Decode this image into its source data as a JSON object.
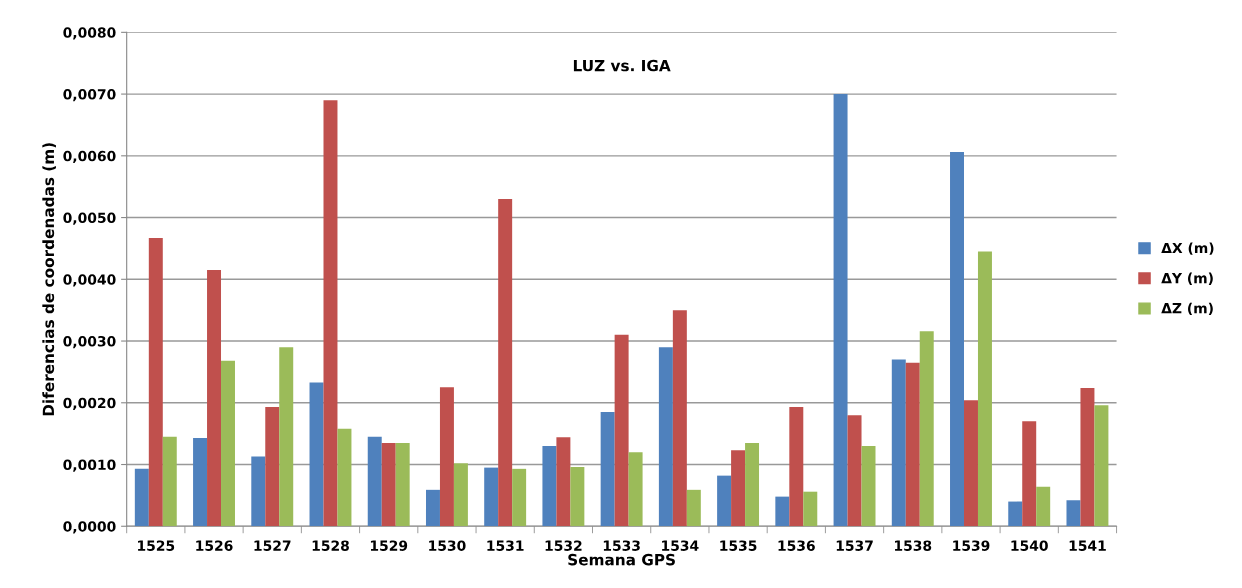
{
  "chart_data": {
    "type": "bar",
    "title": "LUZ vs. IGA",
    "xlabel": "Semana GPS",
    "ylabel": "Diferencias de coordenadas (m)",
    "categories": [
      "1525",
      "1526",
      "1527",
      "1528",
      "1529",
      "1530",
      "1531",
      "1532",
      "1533",
      "1534",
      "1535",
      "1536",
      "1537",
      "1538",
      "1539",
      "1540",
      "1541"
    ],
    "series": [
      {
        "name": "ΔX (m)",
        "color": "#4f81bd",
        "values": [
          0.00093,
          0.00143,
          0.00113,
          0.00233,
          0.00145,
          0.00059,
          0.00095,
          0.0013,
          0.00185,
          0.0029,
          0.00082,
          0.00048,
          0.007,
          0.0027,
          0.00606,
          0.0004,
          0.00042
        ]
      },
      {
        "name": "ΔY (m)",
        "color": "#c0504d",
        "values": [
          0.00467,
          0.00415,
          0.00193,
          0.0069,
          0.00135,
          0.00225,
          0.0053,
          0.00144,
          0.0031,
          0.0035,
          0.00123,
          0.00193,
          0.0018,
          0.00265,
          0.00204,
          0.0017,
          0.00224
        ]
      },
      {
        "name": "ΔZ (m)",
        "color": "#9bbb59",
        "values": [
          0.00145,
          0.00268,
          0.0029,
          0.00158,
          0.00135,
          0.00102,
          0.00093,
          0.00096,
          0.0012,
          0.00059,
          0.00135,
          0.00056,
          0.0013,
          0.00316,
          0.00445,
          0.00064,
          0.00196
        ]
      }
    ],
    "ylim": [
      0,
      0.008
    ],
    "yticks": [
      {
        "value": 0,
        "label": "0,0000"
      },
      {
        "value": 0.001,
        "label": "0,0010"
      },
      {
        "value": 0.002,
        "label": "0,0020"
      },
      {
        "value": 0.003,
        "label": "0,0030"
      },
      {
        "value": 0.004,
        "label": "0,0040"
      },
      {
        "value": 0.005,
        "label": "0,0050"
      },
      {
        "value": 0.006,
        "label": "0,0060"
      },
      {
        "value": 0.007,
        "label": "0,0070"
      },
      {
        "value": 0.008,
        "label": "0,0080"
      }
    ],
    "grid": "y",
    "legend": "right"
  }
}
